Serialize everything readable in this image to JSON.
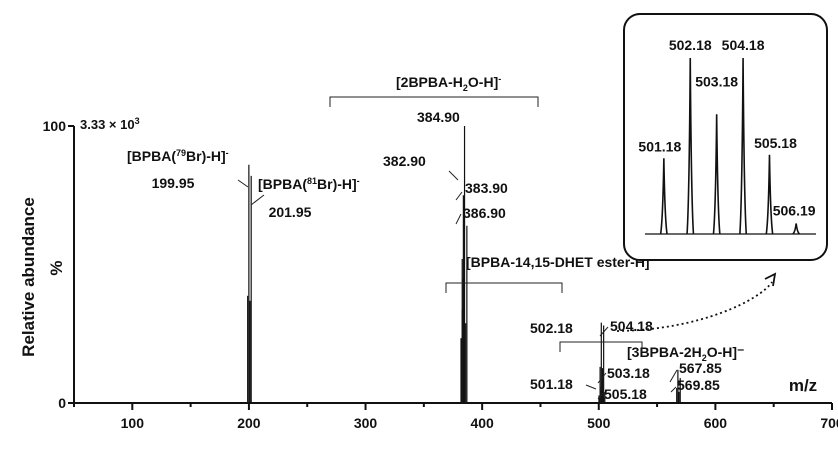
{
  "chart_data": {
    "type": "line",
    "x_axis_unit_label": "m/z",
    "y_axis_title": "Relative abundance",
    "y_unit_label": "%",
    "scale_label": "3.33 × 10",
    "scale_exponent": "3",
    "xlim": [
      50,
      700
    ],
    "ylim": [
      0,
      100
    ],
    "x_ticks": [
      "100",
      "200",
      "300",
      "400",
      "500",
      "600",
      "700"
    ],
    "y_ticks": [
      "0",
      "100"
    ],
    "peaks": [
      {
        "mz": 199.95,
        "intensity": 86,
        "label": "199.95"
      },
      {
        "mz": 201.95,
        "intensity": 82,
        "label": "201.95"
      },
      {
        "mz": 382.9,
        "intensity": 52,
        "label": "382.90"
      },
      {
        "mz": 383.9,
        "intensity": 75,
        "label": "383.90"
      },
      {
        "mz": 384.9,
        "intensity": 100,
        "label": "384.90"
      },
      {
        "mz": 386.9,
        "intensity": 64,
        "label": "386.90"
      },
      {
        "mz": 501.18,
        "intensity": 6,
        "label": "501.18"
      },
      {
        "mz": 502.18,
        "intensity": 29,
        "label": "502.18"
      },
      {
        "mz": 503.18,
        "intensity": 10,
        "label": "503.18"
      },
      {
        "mz": 504.18,
        "intensity": 28,
        "label": "504.18"
      },
      {
        "mz": 505.18,
        "intensity": 4,
        "label": "505.18"
      },
      {
        "mz": 567.85,
        "intensity": 12,
        "label": "567.85"
      },
      {
        "mz": 569.85,
        "intensity": 9,
        "label": "569.85"
      }
    ],
    "annotations": {
      "bpba79": {
        "pre": "[BPBA(",
        "sup": "79",
        "post": "Br)-H]",
        "charge": "-"
      },
      "bpba81": {
        "pre": "[BPBA(",
        "sup": "81",
        "post": "Br)-H]",
        "charge": "-"
      },
      "dimer": {
        "pre": "[2BPBA-H",
        "sub": "2",
        "post": "O-H]",
        "charge": "-"
      },
      "dhet": {
        "text": "[BPBA-14,15-DHET ester-H]⁻"
      },
      "trimer": {
        "pre": "[3BPBA-2H",
        "sub": "2",
        "post": "O-H]⁻"
      }
    },
    "inset": {
      "peaks": [
        {
          "mz": 501.18,
          "intensity": 43,
          "label": "501.18"
        },
        {
          "mz": 502.18,
          "intensity": 100,
          "label": "502.18"
        },
        {
          "mz": 503.18,
          "intensity": 68,
          "label": "503.18"
        },
        {
          "mz": 504.18,
          "intensity": 100,
          "label": "504.18"
        },
        {
          "mz": 505.18,
          "intensity": 45,
          "label": "505.18"
        },
        {
          "mz": 506.19,
          "intensity": 6,
          "label": "506.19"
        }
      ]
    }
  }
}
